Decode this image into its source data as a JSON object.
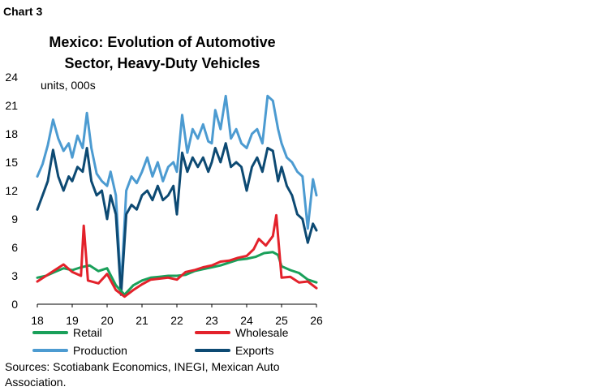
{
  "header": {
    "chart_label": "Chart 3",
    "title_line1": "Mexico: Evolution of Automotive",
    "title_line2": "Sector, Heavy-Duty Vehicles"
  },
  "source_text": "Sources: Scotiabank Economics, INEGI, Mexican Auto Association.",
  "chart_data": {
    "type": "line",
    "title": "Mexico: Evolution of Automotive Sector, Heavy-Duty Vehicles",
    "ylabel": "units, 000s",
    "ylim": [
      0,
      24
    ],
    "xlim": [
      2018,
      2026
    ],
    "yticks": [
      "0",
      "3",
      "6",
      "9",
      "12",
      "15",
      "18",
      "21",
      "24"
    ],
    "xticks": [
      "18",
      "19",
      "20",
      "21",
      "22",
      "23",
      "24",
      "25",
      "26"
    ],
    "legend_placement": "bottom",
    "grid": false,
    "series": [
      {
        "name": "Retail",
        "color": "#1aa05a",
        "x": [
          2018.0,
          2018.25,
          2018.5,
          2018.75,
          2019.0,
          2019.25,
          2019.5,
          2019.75,
          2020.0,
          2020.25,
          2020.5,
          2020.75,
          2021.0,
          2021.25,
          2021.5,
          2021.75,
          2022.0,
          2022.25,
          2022.5,
          2022.75,
          2023.0,
          2023.25,
          2023.5,
          2023.75,
          2024.0,
          2024.25,
          2024.5,
          2024.75,
          2024.9,
          2025.0,
          2025.25,
          2025.5,
          2025.75,
          2026.0
        ],
        "y": [
          2.8,
          3.0,
          3.4,
          3.8,
          3.6,
          3.9,
          4.1,
          3.5,
          3.8,
          2.0,
          1.0,
          2.0,
          2.5,
          2.8,
          2.9,
          3.0,
          3.0,
          3.1,
          3.5,
          3.7,
          3.9,
          4.1,
          4.4,
          4.7,
          4.8,
          5.0,
          5.4,
          5.5,
          5.2,
          4.0,
          3.6,
          3.3,
          2.6,
          2.3
        ]
      },
      {
        "name": "Wholesale",
        "color": "#e3222b",
        "x": [
          2018.0,
          2018.25,
          2018.5,
          2018.75,
          2019.0,
          2019.25,
          2019.33,
          2019.45,
          2019.75,
          2020.0,
          2020.25,
          2020.5,
          2020.75,
          2021.0,
          2021.25,
          2021.5,
          2021.75,
          2022.0,
          2022.25,
          2022.5,
          2022.75,
          2023.0,
          2023.25,
          2023.5,
          2023.75,
          2024.0,
          2024.2,
          2024.35,
          2024.55,
          2024.75,
          2024.85,
          2025.0,
          2025.25,
          2025.5,
          2025.75,
          2026.0
        ],
        "y": [
          2.4,
          3.0,
          3.6,
          4.2,
          3.4,
          3.0,
          8.3,
          2.5,
          2.2,
          3.2,
          1.5,
          0.8,
          1.5,
          2.1,
          2.6,
          2.7,
          2.8,
          2.6,
          3.4,
          3.6,
          3.9,
          4.1,
          4.5,
          4.6,
          4.9,
          5.1,
          5.8,
          6.9,
          6.2,
          7.2,
          9.4,
          2.8,
          2.9,
          2.3,
          2.4,
          1.7
        ]
      },
      {
        "name": "Production",
        "color": "#4c9bd1",
        "x": [
          2018.0,
          2018.15,
          2018.3,
          2018.45,
          2018.6,
          2018.75,
          2018.9,
          2019.0,
          2019.15,
          2019.3,
          2019.42,
          2019.55,
          2019.7,
          2019.85,
          2020.0,
          2020.1,
          2020.25,
          2020.4,
          2020.55,
          2020.7,
          2020.85,
          2021.0,
          2021.15,
          2021.3,
          2021.45,
          2021.6,
          2021.75,
          2021.9,
          2022.0,
          2022.15,
          2022.3,
          2022.45,
          2022.6,
          2022.75,
          2022.9,
          2023.0,
          2023.1,
          2023.25,
          2023.4,
          2023.55,
          2023.7,
          2023.85,
          2024.0,
          2024.15,
          2024.3,
          2024.45,
          2024.6,
          2024.75,
          2024.9,
          2025.0,
          2025.15,
          2025.3,
          2025.45,
          2025.6,
          2025.75,
          2025.9,
          2026.0
        ],
        "y": [
          13.5,
          14.8,
          16.8,
          19.5,
          17.5,
          16.2,
          17.0,
          15.5,
          17.8,
          16.5,
          20.2,
          16.5,
          13.8,
          13.0,
          12.5,
          14.0,
          11.5,
          1.6,
          12.0,
          13.5,
          12.8,
          14.0,
          15.5,
          13.5,
          15.0,
          13.0,
          14.5,
          15.0,
          14.0,
          20.0,
          16.0,
          18.5,
          17.5,
          19.0,
          17.2,
          17.0,
          20.5,
          18.5,
          22.0,
          17.5,
          18.5,
          17.0,
          16.5,
          18.0,
          18.5,
          17.0,
          22.0,
          21.5,
          18.5,
          17.0,
          15.5,
          15.0,
          14.0,
          13.5,
          8.0,
          13.2,
          11.5
        ]
      },
      {
        "name": "Exports",
        "color": "#0d4a73",
        "x": [
          2018.0,
          2018.15,
          2018.3,
          2018.45,
          2018.6,
          2018.75,
          2018.9,
          2019.0,
          2019.15,
          2019.3,
          2019.42,
          2019.55,
          2019.7,
          2019.85,
          2020.0,
          2020.1,
          2020.25,
          2020.4,
          2020.55,
          2020.7,
          2020.85,
          2021.0,
          2021.15,
          2021.3,
          2021.45,
          2021.6,
          2021.75,
          2021.9,
          2022.0,
          2022.15,
          2022.3,
          2022.45,
          2022.6,
          2022.75,
          2022.9,
          2023.0,
          2023.1,
          2023.25,
          2023.4,
          2023.55,
          2023.7,
          2023.85,
          2024.0,
          2024.15,
          2024.3,
          2024.45,
          2024.6,
          2024.75,
          2024.9,
          2025.0,
          2025.15,
          2025.3,
          2025.45,
          2025.6,
          2025.75,
          2025.9,
          2026.0
        ],
        "y": [
          10.0,
          11.5,
          13.0,
          16.3,
          13.5,
          12.0,
          13.5,
          13.0,
          14.5,
          14.0,
          16.5,
          13.0,
          11.5,
          12.0,
          9.0,
          11.5,
          9.5,
          1.0,
          9.5,
          10.5,
          10.0,
          11.5,
          12.0,
          11.0,
          12.5,
          11.0,
          11.5,
          12.5,
          9.5,
          16.0,
          14.0,
          15.5,
          14.5,
          15.5,
          14.0,
          15.0,
          16.5,
          15.0,
          17.0,
          14.5,
          15.0,
          14.5,
          12.0,
          14.5,
          15.5,
          14.0,
          16.5,
          16.2,
          13.0,
          14.5,
          12.5,
          11.5,
          9.5,
          9.0,
          6.5,
          8.5,
          7.8
        ]
      }
    ]
  }
}
